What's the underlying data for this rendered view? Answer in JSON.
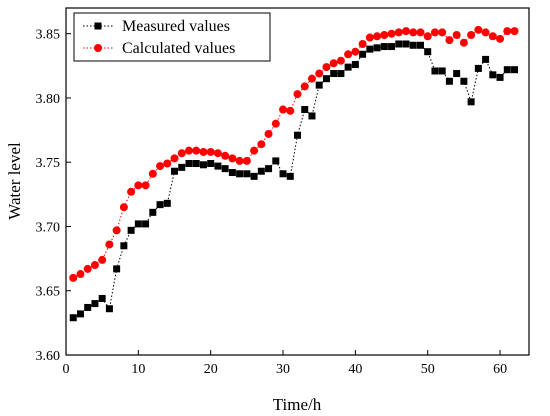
{
  "chart_data": {
    "type": "line",
    "title": "",
    "xlabel": "Time/h",
    "ylabel": "Water level",
    "xlim": [
      0,
      64
    ],
    "ylim": [
      3.6,
      3.87
    ],
    "x_ticks": [
      0,
      10,
      20,
      30,
      40,
      50,
      60
    ],
    "y_ticks": [
      3.6,
      3.65,
      3.7,
      3.75,
      3.8,
      3.85
    ],
    "y_tick_labels": [
      "3.60",
      "3.65",
      "3.70",
      "3.75",
      "3.80",
      "3.85"
    ],
    "grid": false,
    "legend_position": "top-left",
    "x": [
      1,
      2,
      3,
      4,
      5,
      6,
      7,
      8,
      9,
      10,
      11,
      12,
      13,
      14,
      15,
      16,
      17,
      18,
      19,
      20,
      21,
      22,
      23,
      24,
      25,
      26,
      27,
      28,
      29,
      30,
      31,
      32,
      33,
      34,
      35,
      36,
      37,
      38,
      39,
      40,
      41,
      42,
      43,
      44,
      45,
      46,
      47,
      48,
      49,
      50,
      51,
      52,
      53,
      54,
      55,
      56,
      57,
      58,
      59,
      60,
      61,
      62
    ],
    "series": [
      {
        "name": "Measured values",
        "color": "#000000",
        "marker": "square",
        "line_style": "dotted",
        "values": [
          3.629,
          3.632,
          3.637,
          3.64,
          3.644,
          3.636,
          3.667,
          3.685,
          3.697,
          3.702,
          3.702,
          3.711,
          3.717,
          3.718,
          3.743,
          3.746,
          3.749,
          3.749,
          3.748,
          3.749,
          3.747,
          3.745,
          3.742,
          3.741,
          3.741,
          3.739,
          3.743,
          3.745,
          3.751,
          3.741,
          3.739,
          3.771,
          3.791,
          3.786,
          3.81,
          3.815,
          3.819,
          3.819,
          3.824,
          3.826,
          3.834,
          3.838,
          3.839,
          3.84,
          3.84,
          3.842,
          3.842,
          3.841,
          3.841,
          3.836,
          3.821,
          3.821,
          3.813,
          3.819,
          3.813,
          3.797,
          3.823,
          3.83,
          3.818,
          3.816,
          3.822,
          3.822
        ]
      },
      {
        "name": "Calculated values",
        "color": "#ff0000",
        "marker": "circle",
        "line_style": "dotted",
        "values": [
          3.66,
          3.663,
          3.667,
          3.67,
          3.674,
          3.686,
          3.697,
          3.715,
          3.727,
          3.732,
          3.732,
          3.741,
          3.747,
          3.749,
          3.753,
          3.757,
          3.759,
          3.759,
          3.758,
          3.758,
          3.757,
          3.755,
          3.753,
          3.751,
          3.751,
          3.759,
          3.764,
          3.772,
          3.78,
          3.791,
          3.79,
          3.803,
          3.809,
          3.815,
          3.819,
          3.824,
          3.827,
          3.829,
          3.834,
          3.836,
          3.842,
          3.847,
          3.848,
          3.849,
          3.85,
          3.851,
          3.852,
          3.851,
          3.851,
          3.848,
          3.851,
          3.851,
          3.845,
          3.849,
          3.843,
          3.849,
          3.853,
          3.851,
          3.848,
          3.846,
          3.852,
          3.852
        ]
      }
    ]
  }
}
